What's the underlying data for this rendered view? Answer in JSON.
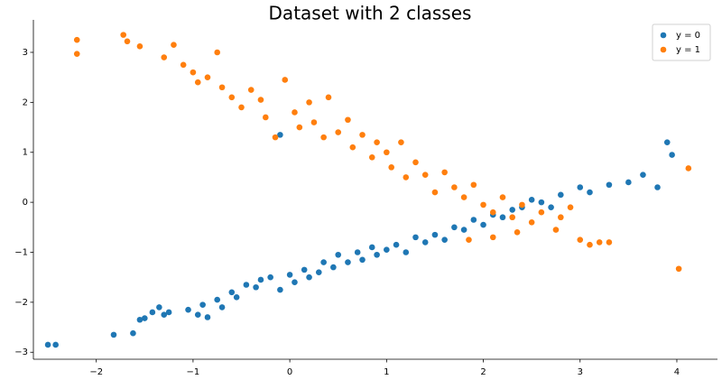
{
  "chart_data": {
    "type": "scatter",
    "title": "Dataset with 2 classes",
    "xlim": [
      -2.65,
      4.42
    ],
    "ylim": [
      -3.14,
      3.65
    ],
    "xticks": [
      {
        "value": -2,
        "label": "−2"
      },
      {
        "value": -1,
        "label": "−1"
      },
      0,
      1,
      2,
      3,
      4
    ],
    "yticks": [
      {
        "value": -3,
        "label": "−3"
      },
      {
        "value": -2,
        "label": "−2"
      },
      {
        "value": -1,
        "label": "−1"
      },
      0,
      1,
      2,
      3
    ],
    "legend": "upper right",
    "series": [
      {
        "name": "y = 0",
        "color": "#1f77b4",
        "x": [
          -2.5,
          -2.42,
          -1.82,
          -1.62,
          -1.55,
          -1.5,
          -1.42,
          -1.35,
          -1.3,
          -1.25,
          -1.05,
          -0.95,
          -0.85,
          -0.9,
          -0.75,
          -0.7,
          -0.6,
          -0.55,
          -0.45,
          -0.35,
          -0.3,
          -0.2,
          -0.1,
          0,
          0.05,
          0.15,
          0.2,
          0.3,
          0.35,
          0.45,
          0.5,
          0.6,
          0.7,
          0.75,
          0.85,
          0.9,
          1.0,
          1.1,
          1.2,
          1.3,
          1.4,
          1.5,
          1.6,
          1.7,
          1.8,
          1.9,
          2.0,
          2.1,
          2.2,
          2.3,
          2.4,
          2.5,
          2.6,
          2.7,
          2.8,
          3.0,
          3.1,
          3.3,
          3.5,
          3.65,
          3.8,
          3.9,
          3.95,
          -0.1
        ],
        "values": [
          -2.85,
          -2.85,
          -2.65,
          -2.62,
          -2.35,
          -2.32,
          -2.2,
          -2.1,
          -2.25,
          -2.2,
          -2.15,
          -2.25,
          -2.3,
          -2.05,
          -1.95,
          -2.1,
          -1.8,
          -1.9,
          -1.65,
          -1.7,
          -1.55,
          -1.5,
          -1.75,
          -1.45,
          -1.6,
          -1.35,
          -1.5,
          -1.4,
          -1.2,
          -1.3,
          -1.05,
          -1.2,
          -1.0,
          -1.15,
          -0.9,
          -1.05,
          -0.95,
          -0.85,
          -1.0,
          -0.7,
          -0.8,
          -0.65,
          -0.75,
          -0.5,
          -0.55,
          -0.35,
          -0.45,
          -0.25,
          -0.3,
          -0.15,
          -0.1,
          0.05,
          0.0,
          -0.1,
          0.15,
          0.3,
          0.2,
          0.35,
          0.4,
          0.55,
          0.3,
          1.2,
          0.95,
          1.35
        ]
      },
      {
        "name": "y = 1",
        "color": "#ff7f0e",
        "x": [
          -2.2,
          -2.2,
          -1.72,
          -1.68,
          -1.55,
          -1.3,
          -1.2,
          -1.1,
          -1.0,
          -0.95,
          -0.85,
          -0.75,
          -0.7,
          -0.6,
          -0.5,
          -0.4,
          -0.3,
          -0.25,
          -0.15,
          -0.05,
          0.05,
          0.1,
          0.2,
          0.25,
          0.35,
          0.4,
          0.5,
          0.6,
          0.65,
          0.75,
          0.85,
          0.9,
          1.0,
          1.05,
          1.15,
          1.2,
          1.3,
          1.4,
          1.5,
          1.6,
          1.7,
          1.8,
          1.9,
          2.0,
          2.1,
          2.2,
          2.3,
          2.4,
          2.5,
          2.6,
          2.75,
          2.8,
          2.9,
          3.0,
          3.1,
          3.2,
          3.3,
          1.85,
          4.02,
          4.12,
          2.1,
          2.35
        ],
        "values": [
          3.25,
          2.97,
          3.35,
          3.22,
          3.12,
          2.9,
          3.15,
          2.75,
          2.6,
          2.4,
          2.5,
          3.0,
          2.3,
          2.1,
          1.9,
          2.25,
          2.05,
          1.7,
          1.3,
          2.45,
          1.8,
          1.5,
          2.0,
          1.6,
          1.3,
          2.1,
          1.4,
          1.65,
          1.1,
          1.35,
          0.9,
          1.2,
          1.0,
          0.7,
          1.2,
          0.5,
          0.8,
          0.55,
          0.2,
          0.6,
          0.3,
          0.1,
          0.35,
          -0.05,
          -0.2,
          0.1,
          -0.3,
          -0.05,
          -0.4,
          -0.2,
          -0.55,
          -0.3,
          -0.1,
          -0.75,
          -0.85,
          -0.8,
          -0.8,
          -0.75,
          -1.33,
          0.68,
          -0.7,
          -0.6
        ]
      }
    ]
  }
}
